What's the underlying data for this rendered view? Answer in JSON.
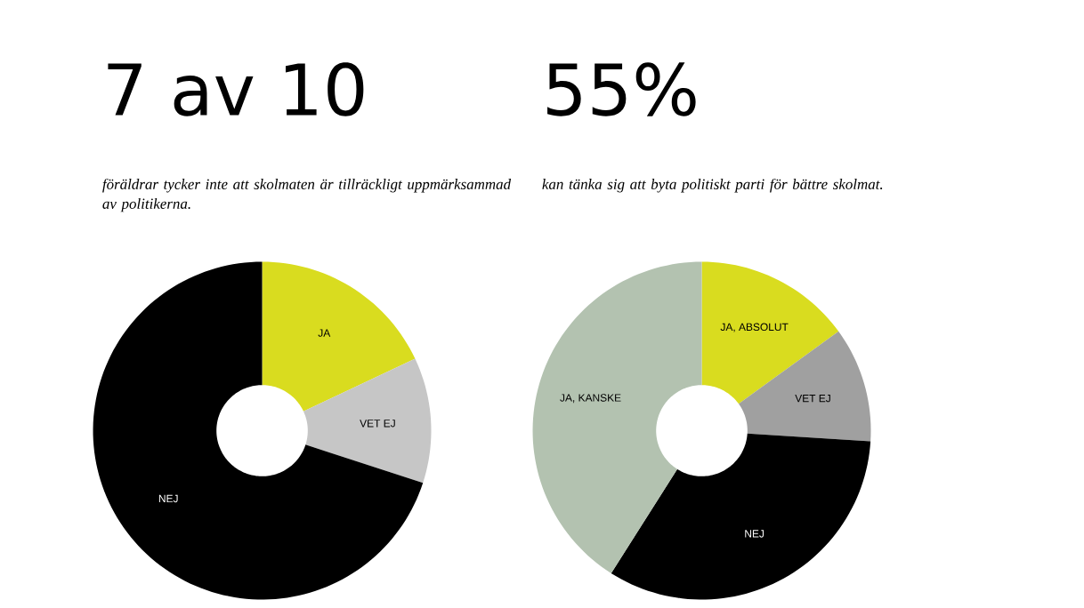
{
  "chart_data": [
    {
      "type": "donut",
      "title": "7 av 10",
      "subtitle": "föräldrar tycker inte att skolmaten är tillräckligt uppmärksammad av politikerna.",
      "categories": [
        "JA",
        "VET EJ",
        "NEJ"
      ],
      "values": [
        18,
        12,
        70
      ],
      "colors": [
        "#d9dc1f",
        "#c6c6c6",
        "#000000"
      ]
    },
    {
      "type": "donut",
      "title": "55%",
      "subtitle": "kan tänka sig att byta politiskt parti för bättre skolmat.",
      "categories": [
        "JA, ABSOLUT",
        "VET EJ",
        "NEJ",
        "JA, KANSKE"
      ],
      "values": [
        15,
        11,
        33,
        41
      ],
      "colors": [
        "#d9dc1f",
        "#a0a0a0",
        "#000000",
        "#b3c2b0"
      ]
    }
  ]
}
